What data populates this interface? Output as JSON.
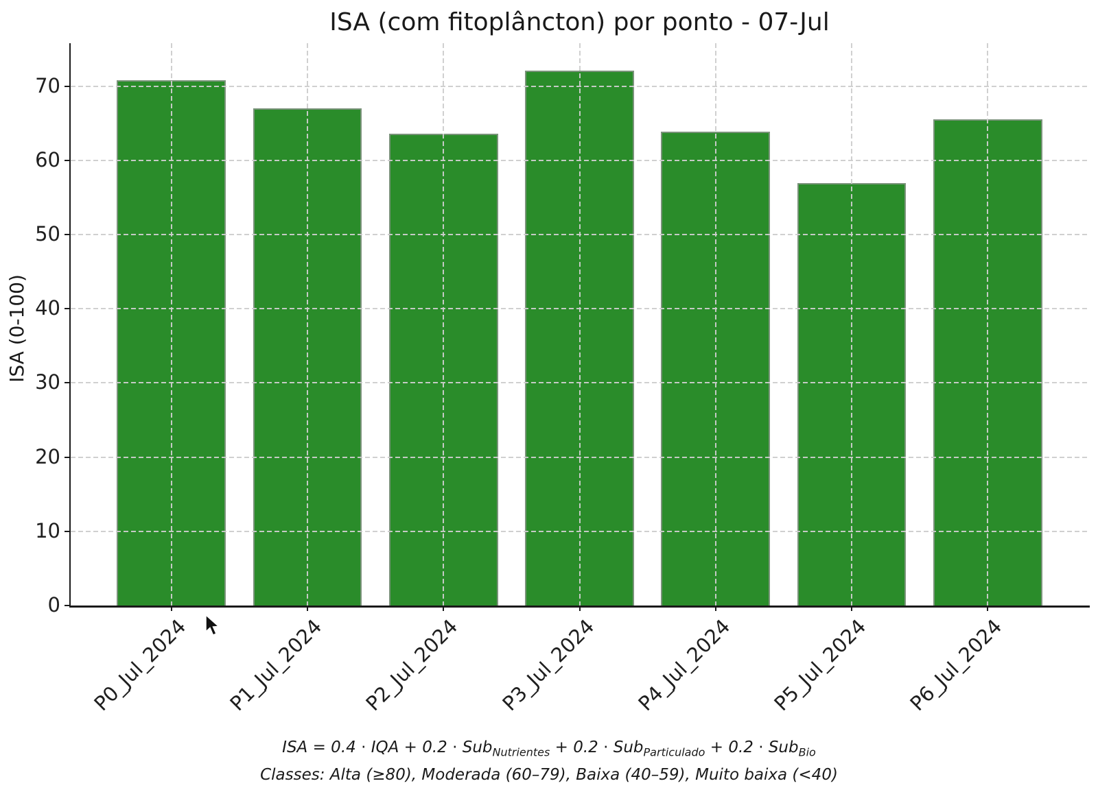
{
  "title": "ISA (com fitoplâncton) por ponto - 07-Jul",
  "y_axis": {
    "label": "ISA (0-100)",
    "ticks": [
      0,
      10,
      20,
      30,
      40,
      50,
      60,
      70
    ]
  },
  "chart_data": {
    "type": "bar",
    "title": "ISA (com fitoplâncton) por ponto - 07-Jul",
    "xlabel": "",
    "ylabel": "ISA (0-100)",
    "categories": [
      "P0_Jul_2024",
      "P1_Jul_2024",
      "P2_Jul_2024",
      "P3_Jul_2024",
      "P4_Jul_2024",
      "P5_Jul_2024",
      "P6_Jul_2024"
    ],
    "values": [
      70.8,
      67.0,
      63.6,
      72.1,
      63.9,
      56.9,
      65.5
    ],
    "ylim": [
      0,
      75.8
    ],
    "yticks": [
      0,
      10,
      20,
      30,
      40,
      50,
      60,
      70
    ],
    "grid": true,
    "grid_style": "dashed",
    "legend": false,
    "bar_color": "#2a8c2a",
    "bar_edge_color": "#969696",
    "x_tick_rotation_deg": 45
  },
  "footer": {
    "formula_segments": [
      {
        "text": "ISA = 0.4 ⋅ IQA + 0.2 ⋅ Sub",
        "sub": "Nutrientes"
      },
      {
        "text": " + 0.2 ⋅ Sub",
        "sub": "Particulado"
      },
      {
        "text": " + 0.2 ⋅ Sub",
        "sub": "Bio"
      }
    ],
    "classes_line": "Classes: Alta (≥80), Moderada (60–79), Baixa (40–59), Muito baixa (<40)"
  },
  "cursor": {
    "present": "mouse-arrow"
  }
}
